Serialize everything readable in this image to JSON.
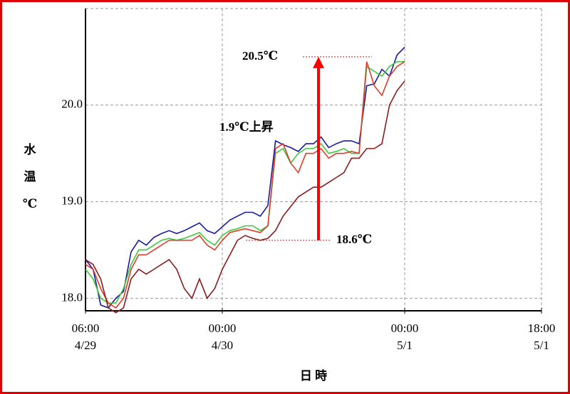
{
  "chart_data": {
    "type": "line",
    "xlabel": "日 時",
    "ylabel": "水温℃",
    "x": [
      6,
      7,
      8,
      9,
      10,
      11,
      12,
      13,
      14,
      15,
      16,
      17,
      18,
      19,
      20,
      21,
      22,
      23,
      24,
      25,
      26,
      27,
      28,
      29,
      30,
      31,
      32,
      33,
      34,
      35,
      36,
      37,
      38,
      39,
      40,
      41,
      42,
      43,
      44,
      45,
      46,
      47,
      48
    ],
    "xlim": [
      6,
      66
    ],
    "xticks": [
      {
        "value": 6,
        "label": "06:00 4/29"
      },
      {
        "value": 24,
        "label": "00:00 4/30"
      },
      {
        "value": 48,
        "label": "00:00 5/1"
      },
      {
        "value": 66,
        "label": "18:00 5/1"
      }
    ],
    "ylim": [
      17.87,
      21.0
    ],
    "yticks": [
      {
        "value": 18,
        "label": "18.0"
      },
      {
        "value": 19,
        "label": "19.0"
      },
      {
        "value": 20,
        "label": "20.0"
      }
    ],
    "grid": true,
    "series": [
      {
        "color": "#1a1aa0",
        "values": [
          18.4,
          18.3,
          17.93,
          17.9,
          18.0,
          18.07,
          18.48,
          18.6,
          18.55,
          18.63,
          18.67,
          18.7,
          18.67,
          18.7,
          18.74,
          18.78,
          18.7,
          18.67,
          18.74,
          18.81,
          18.85,
          18.89,
          18.89,
          18.85,
          18.96,
          19.63,
          19.59,
          19.56,
          19.52,
          19.6,
          19.6,
          19.67,
          19.56,
          19.6,
          19.63,
          19.63,
          19.6,
          20.2,
          20.22,
          20.37,
          20.3,
          20.52,
          20.6
        ]
      },
      {
        "color": "#3cc83c",
        "values": [
          18.3,
          18.2,
          18.0,
          17.95,
          17.95,
          18.1,
          18.35,
          18.5,
          18.5,
          18.55,
          18.6,
          18.62,
          18.6,
          18.62,
          18.65,
          18.68,
          18.6,
          18.55,
          18.65,
          18.7,
          18.72,
          18.75,
          18.75,
          18.7,
          18.75,
          19.5,
          19.55,
          19.4,
          19.5,
          19.55,
          19.55,
          19.6,
          19.5,
          19.52,
          19.55,
          19.5,
          19.5,
          20.4,
          20.35,
          20.3,
          20.4,
          20.45,
          20.45
        ]
      },
      {
        "color": "#e03c28",
        "values": [
          18.35,
          18.3,
          18.1,
          17.95,
          17.9,
          18.0,
          18.3,
          18.45,
          18.45,
          18.5,
          18.55,
          18.6,
          18.6,
          18.6,
          18.6,
          18.65,
          18.55,
          18.5,
          18.6,
          18.68,
          18.7,
          18.72,
          18.7,
          18.68,
          18.75,
          19.55,
          19.6,
          19.4,
          19.3,
          19.5,
          19.5,
          19.55,
          19.45,
          19.5,
          19.5,
          19.52,
          19.5,
          20.45,
          20.2,
          20.1,
          20.3,
          20.4,
          20.45
        ]
      },
      {
        "color": "#8b1c1c",
        "values": [
          18.4,
          18.35,
          18.2,
          17.9,
          17.85,
          17.9,
          18.2,
          18.3,
          18.25,
          18.3,
          18.35,
          18.4,
          18.3,
          18.1,
          18.0,
          18.2,
          18.0,
          18.1,
          18.3,
          18.45,
          18.6,
          18.65,
          18.62,
          18.6,
          18.62,
          18.7,
          18.85,
          18.95,
          19.05,
          19.1,
          19.15,
          19.15,
          19.2,
          19.25,
          19.3,
          19.45,
          19.45,
          19.55,
          19.55,
          19.6,
          20.0,
          20.15,
          20.25
        ]
      }
    ],
    "annotations": {
      "high": {
        "value": 20.5,
        "label": "20.5℃"
      },
      "low": {
        "value": 18.6,
        "label": "18.6℃"
      },
      "rise": {
        "value": 1.9,
        "label": "1.9℃上昇"
      },
      "color": "#ff0000"
    }
  }
}
